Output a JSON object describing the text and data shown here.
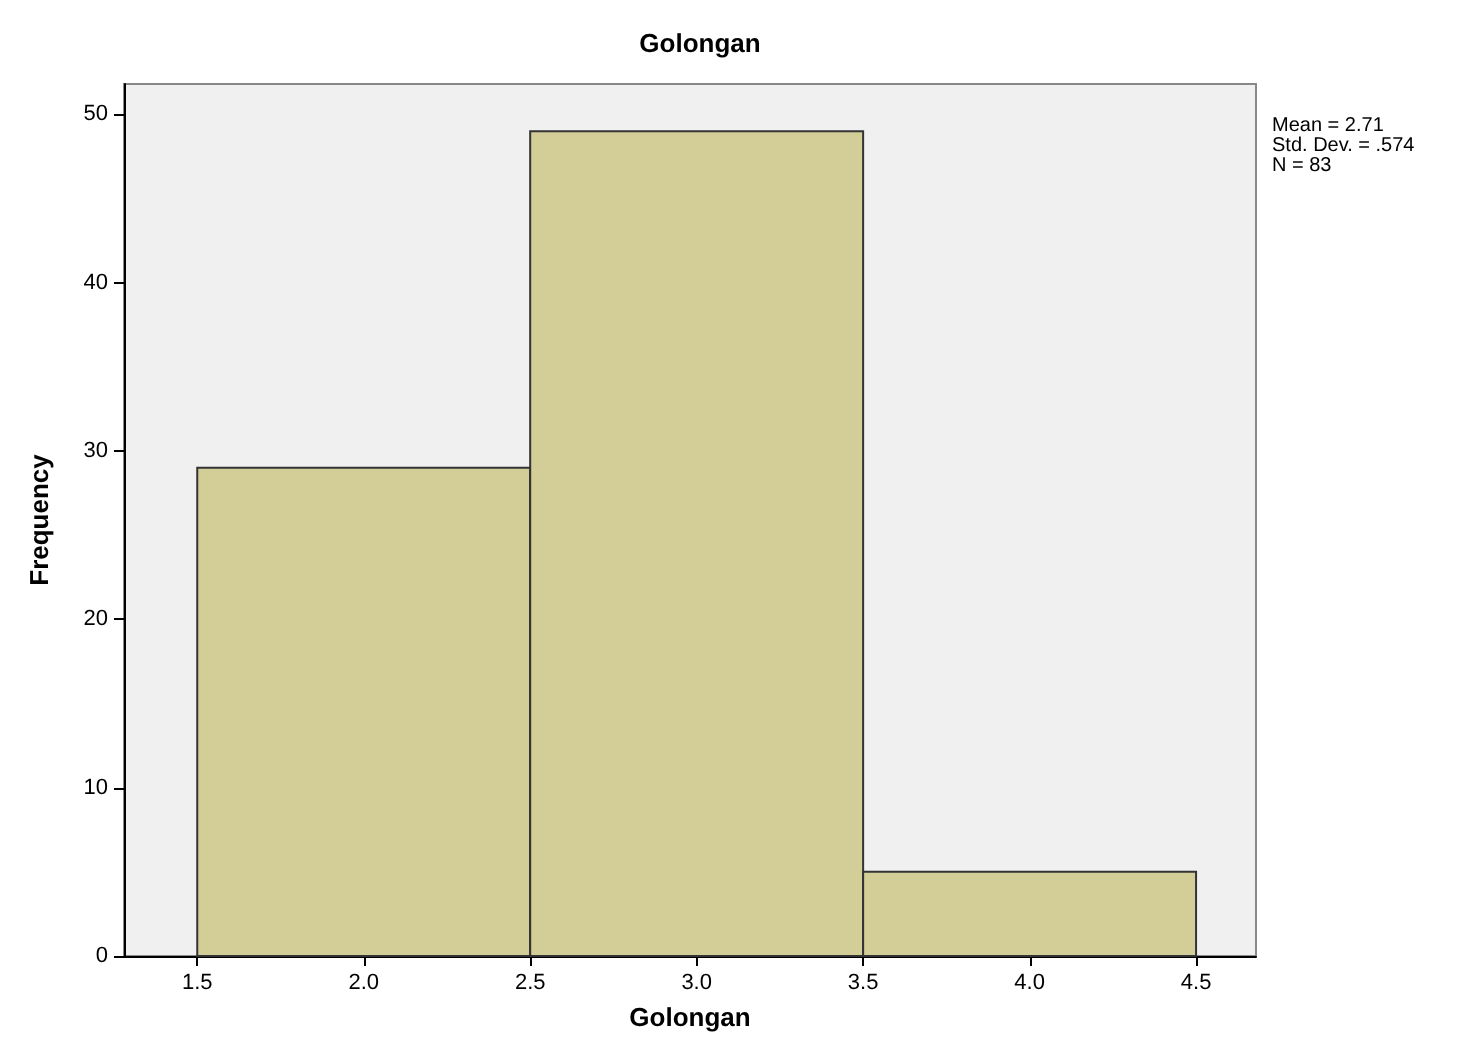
{
  "chart_data": {
    "type": "histogram",
    "title": "Golongan",
    "xlabel": "Golongan",
    "ylabel": "Frequency",
    "bins": [
      1.5,
      2.5,
      3.5,
      4.5
    ],
    "values": [
      29,
      49,
      5
    ],
    "color": "#d3ce97",
    "xlim": [
      1.28,
      4.68
    ],
    "xticks": [
      1.5,
      {
        "value": 2,
        "label": "2.0"
      },
      2.5,
      {
        "value": 3,
        "label": "3.0"
      },
      3.5,
      {
        "value": 4,
        "label": "4.0"
      },
      4.5
    ],
    "ylim": [
      0,
      51.8
    ],
    "yticks": [
      0,
      10,
      20,
      30,
      40,
      50
    ],
    "grid": false,
    "annotations": [
      "Mean = 2.71",
      "Std. Dev. = .574",
      "N = 83"
    ]
  }
}
